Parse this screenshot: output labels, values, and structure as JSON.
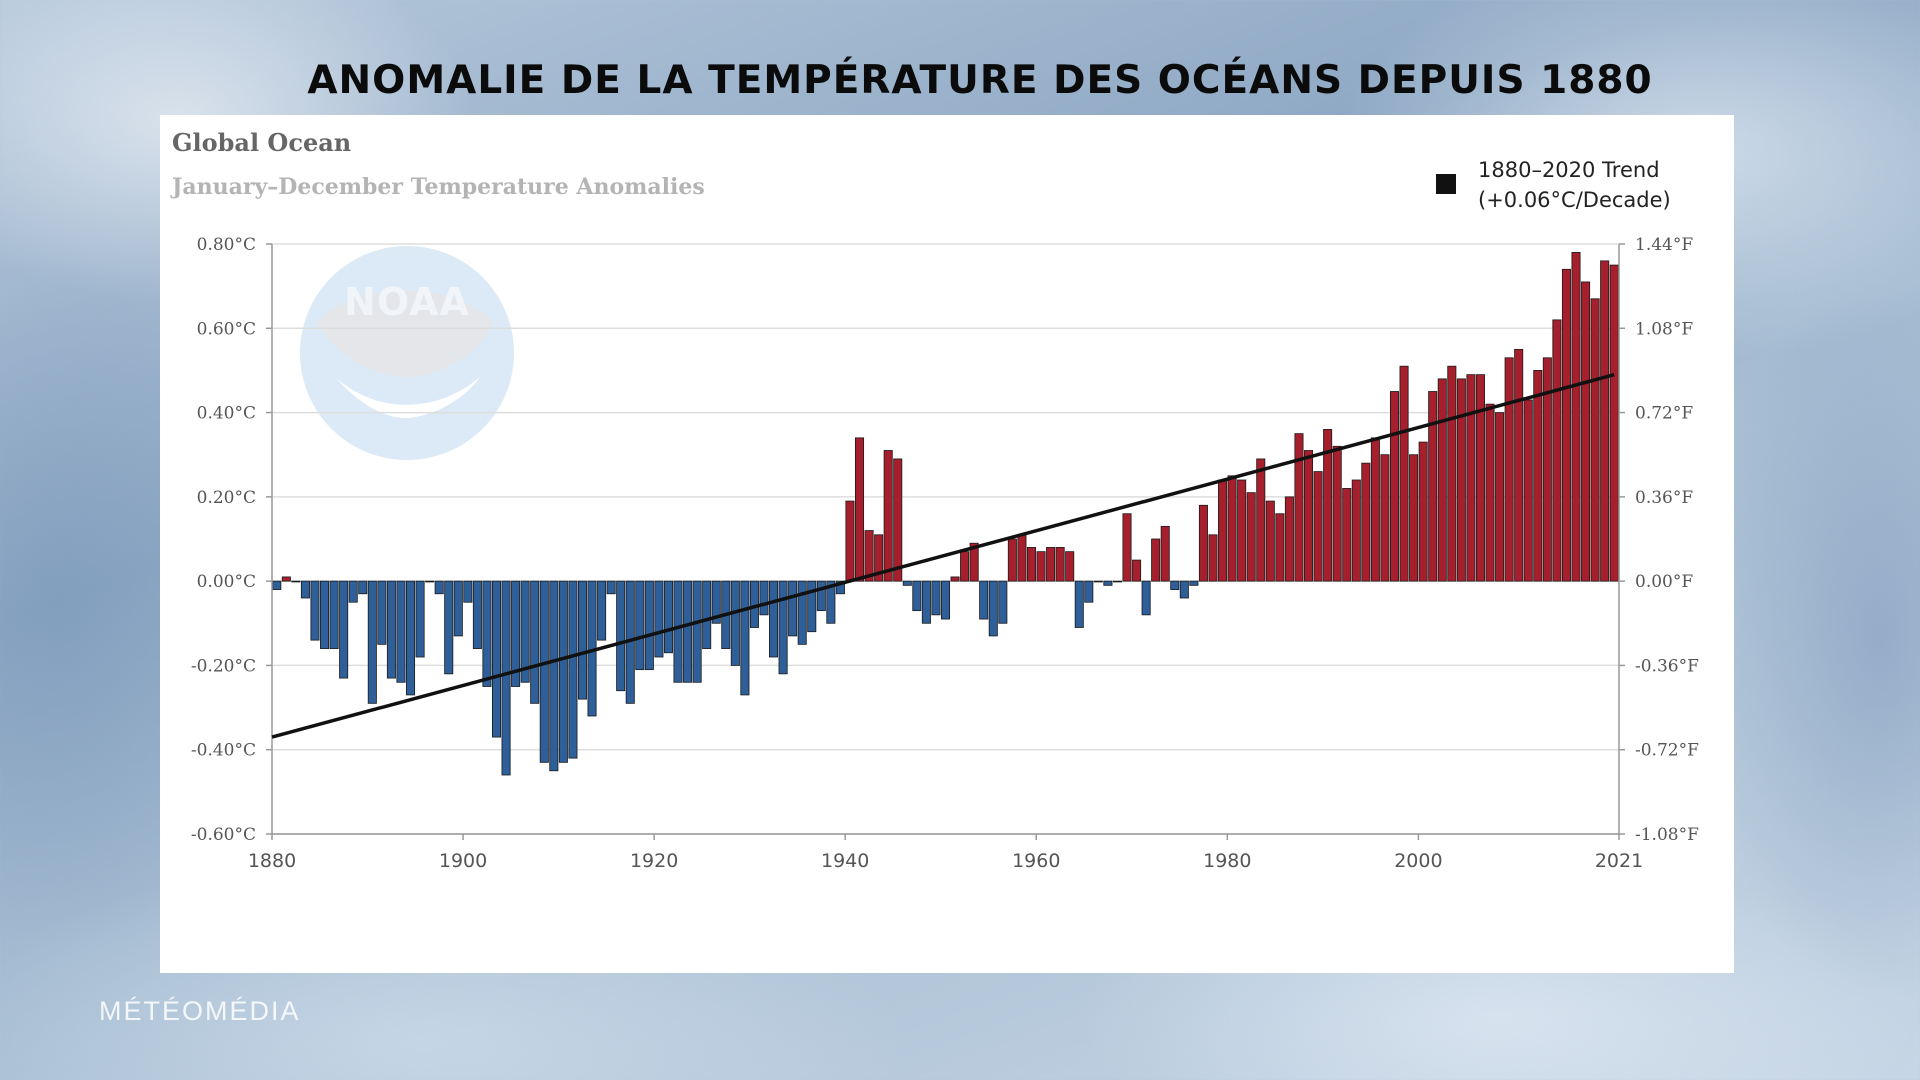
{
  "headline": "ANOMALIE DE LA TEMPÉRATURE DES OCÉANS DEPUIS 1880",
  "branding": "MÉTÉOMÉDIA",
  "logo_text": "NOAA",
  "colors": {
    "positive": "#a51f2c",
    "negative": "#2e5f99",
    "trend": "#111111",
    "grid": "#dddddd",
    "axis": "#999999"
  },
  "chart_data": {
    "type": "bar",
    "title": "Global Ocean",
    "subtitle": "January–December Temperature Anomalies",
    "legend": {
      "label_line1": "1880–2020 Trend",
      "label_line2": "(+0.06°C/Decade)",
      "placement": "top-right"
    },
    "x_range": [
      1880,
      2021
    ],
    "x_ticks": [
      "1880",
      "1900",
      "1920",
      "1940",
      "1960",
      "1980",
      "2000",
      "2021"
    ],
    "ylim": [
      -0.6,
      0.8
    ],
    "y_ticks_left": [
      "0.80°C",
      "0.60°C",
      "0.40°C",
      "0.20°C",
      "0.00°C",
      "-0.20°C",
      "-0.40°C",
      "-0.60°C"
    ],
    "y_ticks_right": [
      "1.44°F",
      "1.08°F",
      "0.72°F",
      "0.36°F",
      "0.00°F",
      "-0.36°F",
      "-0.72°F",
      "-1.08°F"
    ],
    "grid": true,
    "years_start": 1880,
    "values": [
      -0.02,
      0.01,
      0.0,
      -0.04,
      -0.14,
      -0.16,
      -0.16,
      -0.23,
      -0.05,
      -0.03,
      -0.29,
      -0.15,
      -0.23,
      -0.24,
      -0.27,
      -0.18,
      0.0,
      -0.03,
      -0.22,
      -0.13,
      -0.05,
      -0.16,
      -0.25,
      -0.37,
      -0.46,
      -0.25,
      -0.24,
      -0.29,
      -0.43,
      -0.45,
      -0.43,
      -0.42,
      -0.28,
      -0.32,
      -0.14,
      -0.03,
      -0.26,
      -0.29,
      -0.21,
      -0.21,
      -0.18,
      -0.17,
      -0.24,
      -0.24,
      -0.24,
      -0.16,
      -0.1,
      -0.16,
      -0.2,
      -0.27,
      -0.11,
      -0.08,
      -0.18,
      -0.22,
      -0.13,
      -0.15,
      -0.12,
      -0.07,
      -0.1,
      -0.03,
      0.19,
      0.34,
      0.12,
      0.11,
      0.31,
      0.29,
      -0.01,
      -0.07,
      -0.1,
      -0.08,
      -0.09,
      0.01,
      0.07,
      0.09,
      -0.09,
      -0.13,
      -0.1,
      0.1,
      0.11,
      0.08,
      0.07,
      0.08,
      0.08,
      0.07,
      -0.11,
      -0.05,
      0.0,
      -0.01,
      0.0,
      0.16,
      0.05,
      -0.08,
      0.1,
      0.13,
      -0.02,
      -0.04,
      -0.01,
      0.18,
      0.11,
      0.24,
      0.25,
      0.24,
      0.21,
      0.29,
      0.19,
      0.16,
      0.2,
      0.35,
      0.31,
      0.26,
      0.36,
      0.32,
      0.22,
      0.24,
      0.28,
      0.34,
      0.3,
      0.45,
      0.51,
      0.3,
      0.33,
      0.45,
      0.48,
      0.51,
      0.48,
      0.49,
      0.49,
      0.42,
      0.4,
      0.53,
      0.55,
      0.43,
      0.5,
      0.53,
      0.62,
      0.74,
      0.78,
      0.71,
      0.67,
      0.76,
      0.75
    ],
    "trend": {
      "start": [
        1880,
        -0.37
      ],
      "end": [
        2020,
        0.49
      ]
    }
  }
}
